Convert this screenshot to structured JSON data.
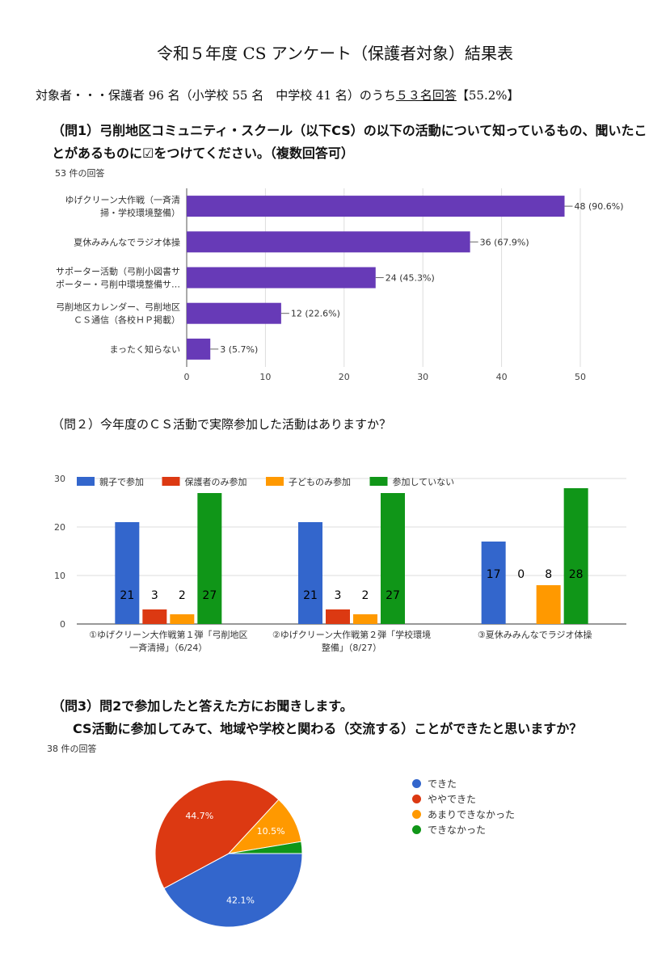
{
  "header": {
    "title": "令和５年度 CS アンケート（保護者対象）結果表",
    "subject_prefix": "対象者・・・保護者 96 名（小学校 55 名　中学校 41 名）のうち",
    "subject_underlined": "５３名回答",
    "subject_suffix": "【55.2%】"
  },
  "q1": {
    "line1": "（問1）弓削地区コミュニティ・スクール（以下CS）の以下の活動について知っているもの、聞いたこ",
    "line2": "とがあるものに☑をつけてください。（複数回答可）",
    "count": "53 件の回答"
  },
  "q2": {
    "question": "（問２）今年度のＣＳ活動で実際参加した活動はありますか？"
  },
  "q3": {
    "line1": "（問3）問2で参加したと答えた方にお聞きします。",
    "line2": "CS活動に参加してみて、地域や学校と関わる（交流する）ことができたと思いますか？",
    "count": "38 件の回答"
  },
  "chart_data": [
    {
      "type": "bar",
      "orientation": "horizontal",
      "categories": [
        [
          "ゆげクリーン大作戦（一斉清",
          "掃・学校環境整備）"
        ],
        [
          "夏休みみんなでラジオ体操"
        ],
        [
          "サポーター活動（弓削小図書サ",
          "ポーター・弓削中環境整備サ…"
        ],
        [
          "弓削地区カレンダー、弓削地区",
          "ＣＳ通信（各校ＨＰ掲載）"
        ],
        [
          "まったく知らない"
        ]
      ],
      "values": [
        48,
        36,
        24,
        12,
        3
      ],
      "data_labels": [
        "48 (90.6%)",
        "36 (67.9%)",
        "24 (45.3%)",
        "12 (22.6%)",
        "3 (5.7%)"
      ],
      "xlim": [
        0,
        50
      ],
      "xticks": [
        "0",
        "10",
        "20",
        "30",
        "40",
        "50"
      ],
      "color": "#673ab7"
    },
    {
      "type": "bar",
      "categories": [
        [
          "①ゆげクリーン大作戦第１弾「弓削地区",
          "一斉清掃」（6/24）"
        ],
        [
          "②ゆげクリーン大作戦第２弾「学校環境",
          "整備」（8/27）"
        ],
        [
          "③夏休みみんなでラジオ体操"
        ]
      ],
      "series": [
        {
          "name": "親子で参加",
          "color": "#3366cc",
          "values": [
            21,
            21,
            17
          ],
          "labels": [
            "21",
            "21",
            "17"
          ]
        },
        {
          "name": "保護者のみ参加",
          "color": "#dc3912",
          "values": [
            3,
            3,
            0
          ],
          "labels": [
            "3",
            "3",
            "0"
          ]
        },
        {
          "name": "子どものみ参加",
          "color": "#ff9900",
          "values": [
            2,
            2,
            8
          ],
          "labels": [
            "2",
            "2",
            "8"
          ]
        },
        {
          "name": "参加していない",
          "color": "#109618",
          "values": [
            27,
            27,
            28
          ],
          "labels": [
            "27",
            "27",
            "28"
          ]
        }
      ],
      "ylim": [
        0,
        30
      ],
      "yticks": [
        "0",
        "10",
        "20",
        "30"
      ],
      "legend": "top"
    },
    {
      "type": "pie",
      "categories": [
        "できた",
        "ややできた",
        "あまりできなかった",
        "できなかった"
      ],
      "values": [
        42.1,
        44.7,
        10.5,
        2.6
      ],
      "slice_labels": [
        "42.1%",
        "44.7%",
        "10.5%",
        ""
      ],
      "colors": [
        "#3366cc",
        "#dc3912",
        "#ff9900",
        "#109618"
      ],
      "legend": "right"
    }
  ]
}
